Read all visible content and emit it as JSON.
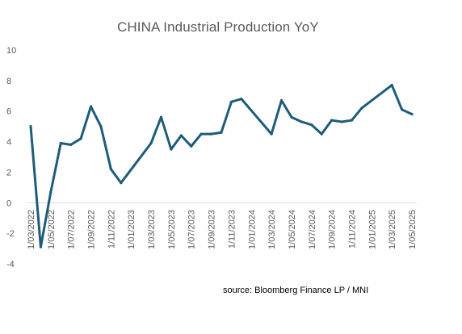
{
  "chart_data": {
    "type": "line",
    "title": "CHINA Industrial Production YoY",
    "source": "source: Bloomberg Finance LP / MNI",
    "xlabel": "",
    "ylabel": "",
    "ylim": [
      -4,
      10
    ],
    "yticks": [
      10,
      8,
      6,
      4,
      2,
      0,
      -2,
      -4
    ],
    "x_start": "2022-03",
    "x_end": "2025-05",
    "x_tick_labels": [
      "1/03/2022",
      "1/05/2022",
      "1/07/2022",
      "1/09/2022",
      "1/11/2022",
      "1/01/2023",
      "1/03/2023",
      "1/05/2023",
      "1/07/2023",
      "1/09/2023",
      "1/11/2023",
      "1/01/2024",
      "1/03/2024",
      "1/05/2024",
      "1/07/2024",
      "1/09/2024",
      "1/11/2024",
      "1/01/2025",
      "1/03/2025",
      "1/05/2025"
    ],
    "grid": false,
    "line_color": "#1f5c7a",
    "series": [
      {
        "points": [
          {
            "x": "2022-03",
            "y": 5.0
          },
          {
            "x": "2022-04",
            "y": -2.9
          },
          {
            "x": "2022-05",
            "y": 0.7
          },
          {
            "x": "2022-06",
            "y": 3.9
          },
          {
            "x": "2022-07",
            "y": 3.8
          },
          {
            "x": "2022-08",
            "y": 4.2
          },
          {
            "x": "2022-09",
            "y": 6.3
          },
          {
            "x": "2022-10",
            "y": 5.0
          },
          {
            "x": "2022-11",
            "y": 2.2
          },
          {
            "x": "2022-12",
            "y": 1.3
          },
          {
            "x": "2023-03",
            "y": 3.9
          },
          {
            "x": "2023-04",
            "y": 5.6
          },
          {
            "x": "2023-05",
            "y": 3.5
          },
          {
            "x": "2023-06",
            "y": 4.4
          },
          {
            "x": "2023-07",
            "y": 3.7
          },
          {
            "x": "2023-08",
            "y": 4.5
          },
          {
            "x": "2023-09",
            "y": 4.5
          },
          {
            "x": "2023-10",
            "y": 4.6
          },
          {
            "x": "2023-11",
            "y": 6.6
          },
          {
            "x": "2023-12",
            "y": 6.8
          },
          {
            "x": "2024-03",
            "y": 4.5
          },
          {
            "x": "2024-04",
            "y": 6.7
          },
          {
            "x": "2024-05",
            "y": 5.6
          },
          {
            "x": "2024-06",
            "y": 5.3
          },
          {
            "x": "2024-07",
            "y": 5.1
          },
          {
            "x": "2024-08",
            "y": 4.5
          },
          {
            "x": "2024-09",
            "y": 5.4
          },
          {
            "x": "2024-10",
            "y": 5.3
          },
          {
            "x": "2024-11",
            "y": 5.4
          },
          {
            "x": "2024-12",
            "y": 6.2
          },
          {
            "x": "2025-03",
            "y": 7.7
          },
          {
            "x": "2025-04",
            "y": 6.1
          },
          {
            "x": "2025-05",
            "y": 5.8
          }
        ]
      }
    ]
  }
}
